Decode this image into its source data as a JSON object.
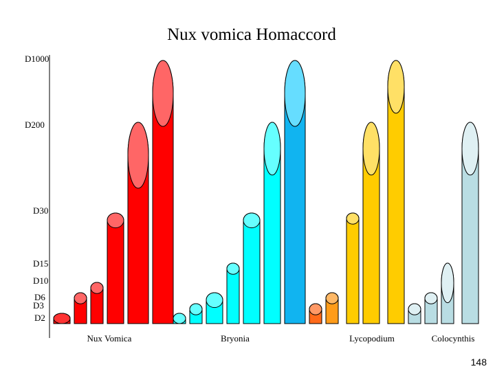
{
  "chart_data": {
    "type": "bar",
    "title": "Nux vomica Homaccord",
    "xlabel": "",
    "ylabel": "",
    "y_ticks": [
      "D1000",
      "D200",
      "D30",
      "D15",
      "D10",
      "D6",
      "D3",
      "D2"
    ],
    "groups": [
      {
        "name": "Nux Vomica",
        "color": "#ff0000",
        "cap_color": "#ff6666",
        "bars": [
          "D2",
          "D6",
          "D10",
          "D30",
          "D200",
          "D1000"
        ]
      },
      {
        "name": "Bryonia",
        "color": "#00ffff",
        "cap_color": "#66ffff",
        "bars": [
          "D2",
          "D3",
          "D6",
          "D15",
          "D30",
          "D200",
          "D1000"
        ]
      },
      {
        "name": "Lycopodium",
        "color": "#ffcc00",
        "cap_color": "#ffe066",
        "bars": [
          "D3",
          "D6",
          "D30",
          "D200",
          "D1000"
        ]
      },
      {
        "name": "Colocynthis",
        "color": "#b9dde3",
        "cap_color": "#dff0f3",
        "bars": [
          "D3",
          "D6",
          "D15",
          "D200"
        ]
      }
    ],
    "bar_overrides": {
      "bryonia_last_color": "#11b4f0",
      "bryonia_last_cap": "#66ddff",
      "lycopodium_first_colors": [
        "#ff6a1a",
        "#ff9c1a"
      ],
      "lycopodium_first_caps": [
        "#ff9966",
        "#ffb866"
      ],
      "nux_first_cap": "#ff3333"
    },
    "grid": false,
    "legend": "none"
  },
  "page_number": "148"
}
